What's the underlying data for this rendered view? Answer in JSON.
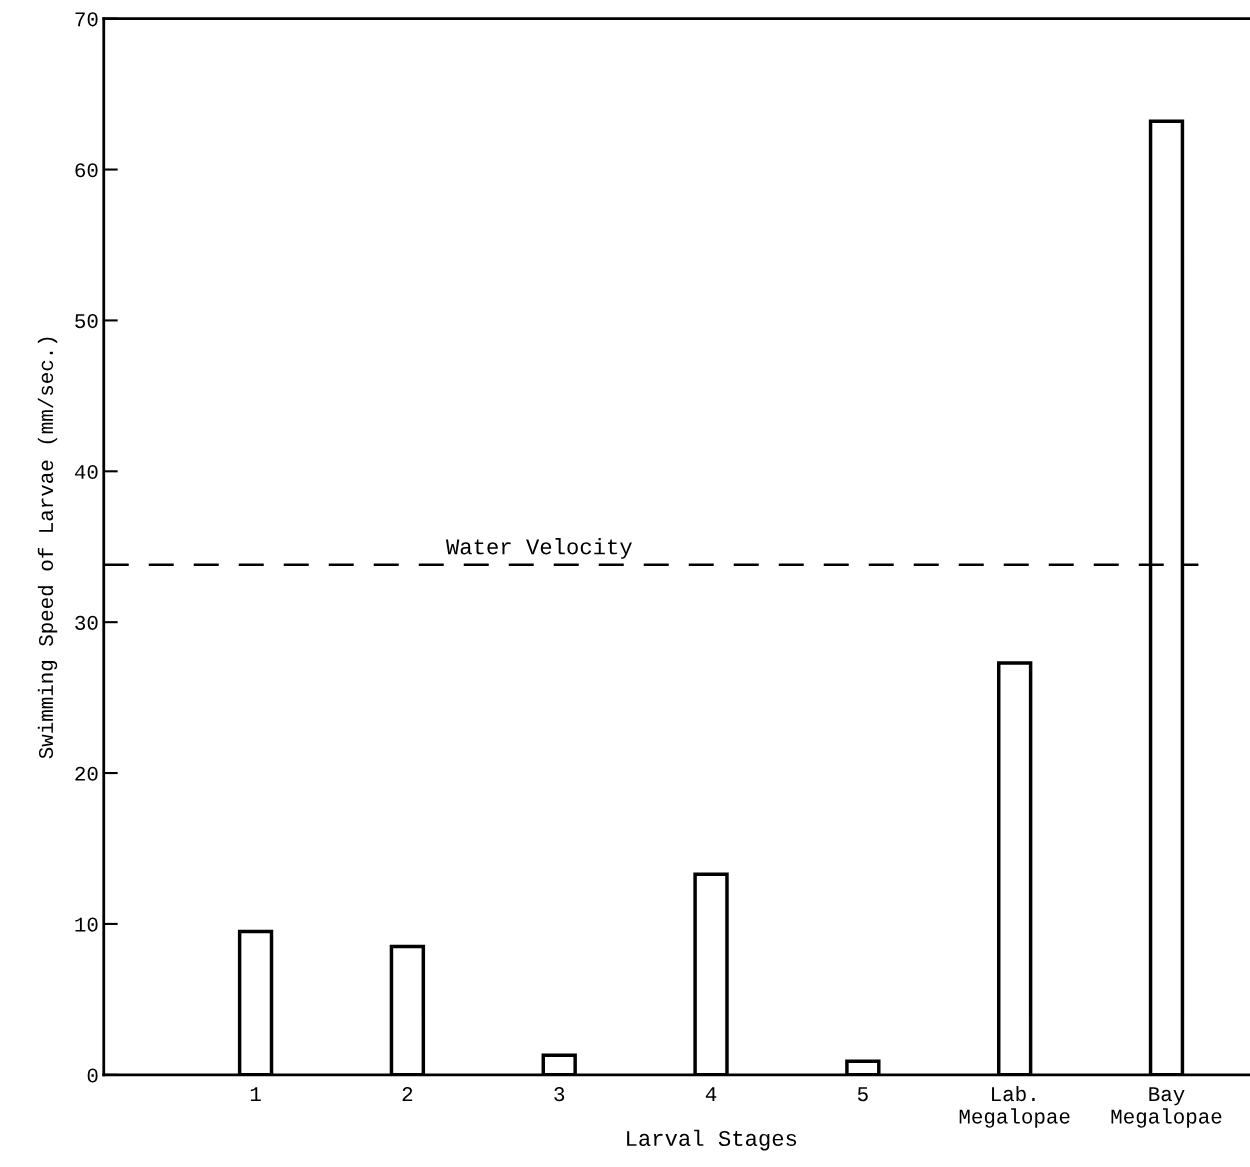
{
  "chart_data": {
    "type": "bar",
    "xlabel": "Larval Stages",
    "ylabel": "Swimming Speed of Larvae (mm/sec.)",
    "categories": [
      "1",
      "2",
      "3",
      "4",
      "5",
      "Lab.\nMegalopae",
      "Bay\nMegalopae"
    ],
    "values": [
      9.5,
      8.5,
      1.3,
      13.3,
      0.9,
      27.3,
      63.2
    ],
    "color": "#ffffff",
    "ylim": [
      0,
      70
    ],
    "yticks": [
      0,
      10,
      20,
      30,
      40,
      50,
      60,
      70
    ],
    "grid": false,
    "ref_lines": [
      {
        "axis": "y",
        "value": 33.8,
        "label": "Water Velocity",
        "color": "#000000",
        "line_style": "dashed"
      }
    ]
  }
}
